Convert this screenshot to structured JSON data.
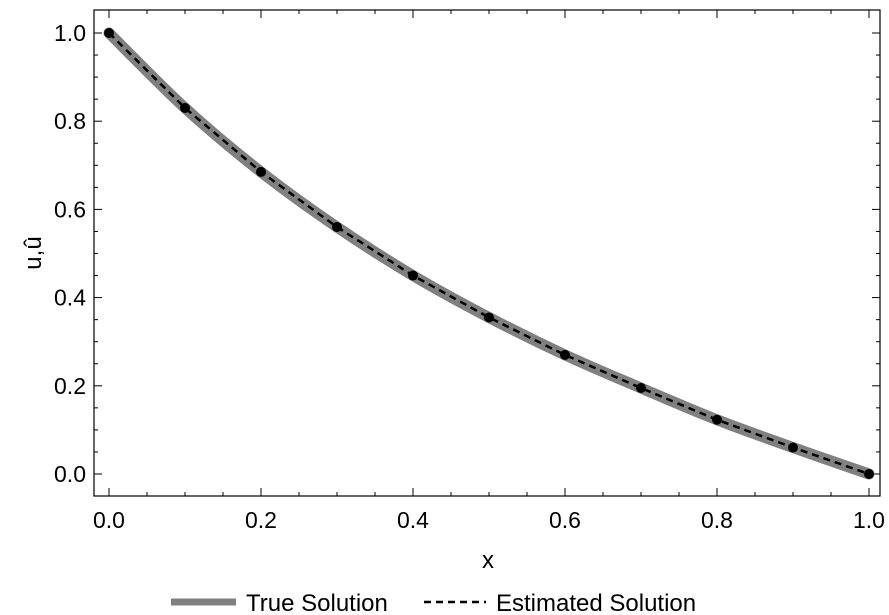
{
  "chart_data": {
    "type": "line",
    "title": "",
    "xlabel": "x",
    "ylabel": "u,û",
    "xlim": [
      0.0,
      1.0
    ],
    "ylim": [
      0.0,
      1.0
    ],
    "x_ticks": [
      "0.0",
      "0.2",
      "0.4",
      "0.6",
      "0.8",
      "1.0"
    ],
    "y_ticks": [
      "0.0",
      "0.2",
      "0.4",
      "0.6",
      "0.8",
      "1.0"
    ],
    "grid": false,
    "legend_position": "bottom",
    "series": [
      {
        "name": "True Solution",
        "style": "solid-thick",
        "color": "#808080",
        "x": [
          0.0,
          0.1,
          0.2,
          0.3,
          0.4,
          0.5,
          0.6,
          0.7,
          0.8,
          0.9,
          1.0
        ],
        "values": [
          1.0,
          0.83,
          0.685,
          0.56,
          0.45,
          0.355,
          0.27,
          0.195,
          0.123,
          0.06,
          0.0
        ]
      },
      {
        "name": "Estimated Solution",
        "style": "dashed-with-markers",
        "color": "#000000",
        "x": [
          0.0,
          0.1,
          0.2,
          0.3,
          0.4,
          0.5,
          0.6,
          0.7,
          0.8,
          0.9,
          1.0
        ],
        "values": [
          1.0,
          0.83,
          0.685,
          0.56,
          0.45,
          0.355,
          0.27,
          0.195,
          0.123,
          0.06,
          0.0
        ]
      }
    ]
  }
}
